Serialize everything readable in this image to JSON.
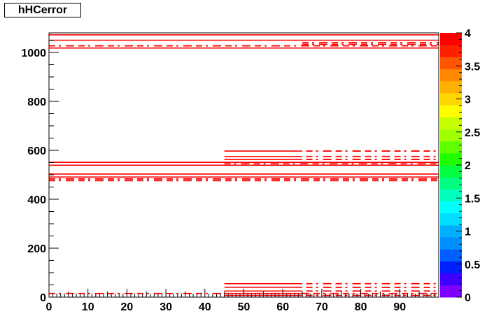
{
  "chart_data": {
    "type": "heatmap",
    "title": "hHCerror",
    "xlabel": "",
    "ylabel": "",
    "xlim": [
      0,
      100
    ],
    "ylim": [
      0,
      1080
    ],
    "zlim": [
      0,
      4
    ],
    "x_ticks": [
      0,
      10,
      20,
      30,
      40,
      50,
      60,
      70,
      80,
      90
    ],
    "y_ticks": [
      0,
      200,
      400,
      600,
      800,
      1000
    ],
    "z_ticks": [
      "0",
      "0.5",
      "1",
      "1.5",
      "2",
      "2.5",
      "3",
      "3.5",
      "4"
    ],
    "z_tick_values": [
      0,
      0.5,
      1,
      1.5,
      2,
      2.5,
      3,
      3.5,
      4
    ],
    "palette": [
      "#7f00ff",
      "#4000ff",
      "#0020ff",
      "#0060ff",
      "#0090ff",
      "#00b0ff",
      "#00dfff",
      "#00ffff",
      "#00ffbf",
      "#00ff80",
      "#00ff40",
      "#20ff00",
      "#60ff00",
      "#a0ff00",
      "#c8ff00",
      "#ffff00",
      "#ffd700",
      "#ffb000",
      "#ff8800",
      "#ff5500",
      "#ff2000",
      "#ff0000"
    ],
    "bin_color": "#ff0000",
    "solid_rows": [
      {
        "y": 1072,
        "x0": 0,
        "x1": 100
      },
      {
        "y": 1050,
        "x0": 0,
        "x1": 100
      },
      {
        "y": 1018,
        "x0": 0,
        "x1": 100
      },
      {
        "y": 503,
        "x0": 0,
        "x1": 100
      },
      {
        "y": 491,
        "x0": 0,
        "x1": 100
      },
      {
        "y": 551,
        "x0": 0,
        "x1": 100
      },
      {
        "y": 539,
        "x0": 0,
        "x1": 100
      },
      {
        "y": 597,
        "x0": 45,
        "x1": 65
      },
      {
        "y": 575,
        "x0": 45,
        "x1": 65
      },
      {
        "y": 563,
        "x0": 45,
        "x1": 65
      },
      {
        "y": 55,
        "x0": 45,
        "x1": 65
      },
      {
        "y": 40,
        "x0": 45,
        "x1": 65
      },
      {
        "y": 25,
        "x0": 45,
        "x1": 65
      },
      {
        "y": 15,
        "x0": 45,
        "x1": 65
      },
      {
        "y": 7,
        "x0": 45,
        "x1": 65
      }
    ],
    "broken_rows": [
      {
        "y": 1027,
        "x0": 0,
        "x1": 100
      },
      {
        "y": 1040,
        "x0": 65,
        "x1": 100
      },
      {
        "y": 1033,
        "x0": 65,
        "x1": 100
      },
      {
        "y": 483,
        "x0": 0,
        "x1": 100
      },
      {
        "y": 476,
        "x0": 0,
        "x1": 100
      },
      {
        "y": 545,
        "x0": 45,
        "x1": 100
      },
      {
        "y": 597,
        "x0": 66,
        "x1": 100
      },
      {
        "y": 575,
        "x0": 66,
        "x1": 100
      },
      {
        "y": 563,
        "x0": 66,
        "x1": 100
      },
      {
        "y": 55,
        "x0": 66,
        "x1": 100
      },
      {
        "y": 40,
        "x0": 66,
        "x1": 100
      },
      {
        "y": 25,
        "x0": 66,
        "x1": 100
      },
      {
        "y": 15,
        "x0": 0,
        "x1": 100
      },
      {
        "y": 7,
        "x0": 66,
        "x1": 100
      }
    ]
  }
}
